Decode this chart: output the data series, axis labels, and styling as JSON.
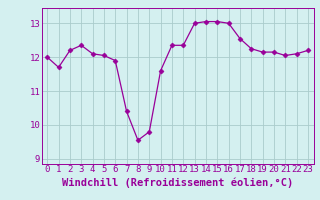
{
  "x": [
    0,
    1,
    2,
    3,
    4,
    5,
    6,
    7,
    8,
    9,
    10,
    11,
    12,
    13,
    14,
    15,
    16,
    17,
    18,
    19,
    20,
    21,
    22,
    23
  ],
  "y": [
    12.0,
    11.7,
    12.2,
    12.35,
    12.1,
    12.05,
    11.9,
    10.4,
    9.55,
    9.8,
    11.6,
    12.35,
    12.35,
    13.0,
    13.05,
    13.05,
    13.0,
    12.55,
    12.25,
    12.15,
    12.15,
    12.05,
    12.1,
    12.2
  ],
  "xlabel": "Windchill (Refroidissement éolien,°C)",
  "xticks": [
    0,
    1,
    2,
    3,
    4,
    5,
    6,
    7,
    8,
    9,
    10,
    11,
    12,
    13,
    14,
    15,
    16,
    17,
    18,
    19,
    20,
    21,
    22,
    23
  ],
  "yticks": [
    9,
    10,
    11,
    12,
    13
  ],
  "ylim": [
    8.85,
    13.45
  ],
  "xlim": [
    -0.5,
    23.5
  ],
  "line_color": "#990099",
  "marker": "D",
  "marker_size": 2.5,
  "bg_color": "#d4f0f0",
  "grid_color": "#aacccc",
  "tick_label_fontsize": 6.5,
  "xlabel_fontsize": 7.5
}
